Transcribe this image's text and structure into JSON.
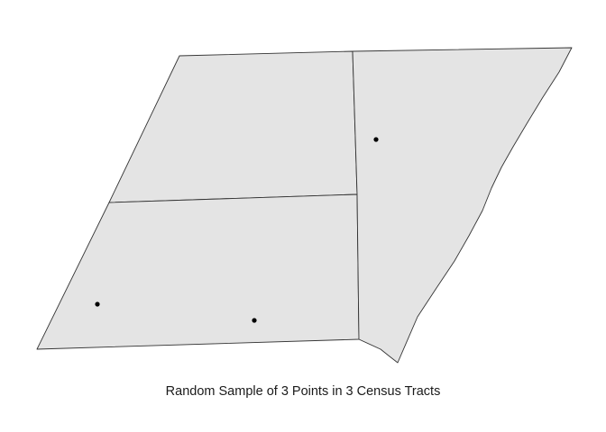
{
  "map": {
    "tracts_count": 3,
    "points_count": 3,
    "tract_fill": "#e4e4e4",
    "border_color": "#333333",
    "point_color": "#000000",
    "background": "#ffffff"
  },
  "caption": "Random Sample of 3 Points in 3 Census Tracts"
}
